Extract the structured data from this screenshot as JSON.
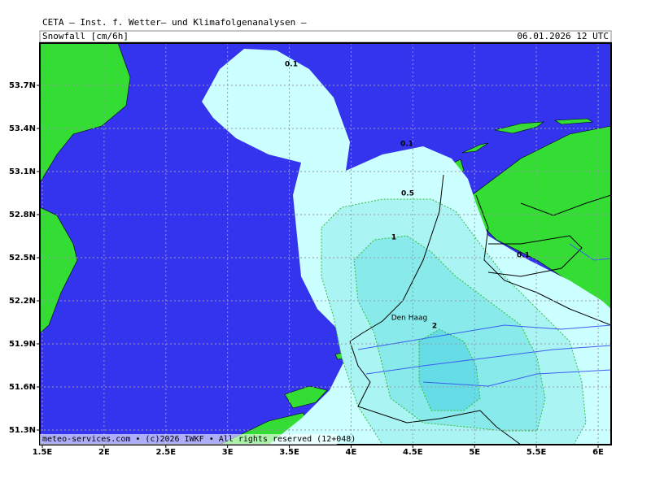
{
  "header": {
    "title": "CETA — Inst. f. Wetter— und Klimafolgenanalysen —",
    "variable": "Snowfall [cm/6h]",
    "valid_time": "06.01.2026 12 UTC"
  },
  "map": {
    "xticks": [
      {
        "value": 1.5,
        "label": "1.5E"
      },
      {
        "value": 2,
        "label": "2E"
      },
      {
        "value": 2.5,
        "label": "2.5E"
      },
      {
        "value": 3,
        "label": "3E"
      },
      {
        "value": 3.5,
        "label": "3.5E"
      },
      {
        "value": 4,
        "label": "4E"
      },
      {
        "value": 4.5,
        "label": "4.5E"
      },
      {
        "value": 5,
        "label": "5E"
      },
      {
        "value": 5.5,
        "label": "5.5E"
      },
      {
        "value": 6,
        "label": "6E"
      }
    ],
    "yticks": [
      {
        "value": 53.7,
        "label": "53.7N"
      },
      {
        "value": 53.4,
        "label": "53.4N"
      },
      {
        "value": 53.1,
        "label": "53.1N"
      },
      {
        "value": 52.8,
        "label": "52.8N"
      },
      {
        "value": 52.5,
        "label": "52.5N"
      },
      {
        "value": 52.2,
        "label": "52.2N"
      },
      {
        "value": 51.9,
        "label": "51.9N"
      },
      {
        "value": 51.6,
        "label": "51.6N"
      },
      {
        "value": 51.3,
        "label": "51.3N"
      }
    ],
    "contour_labels": [
      "0.1",
      "0.1",
      "0.5",
      "1",
      "0.1",
      "2"
    ],
    "places": [
      "Den Haag"
    ]
  },
  "footer": {
    "credit": "meteo-services.com • (c)2026 IWKF • All rights reserved (12+048)"
  }
}
